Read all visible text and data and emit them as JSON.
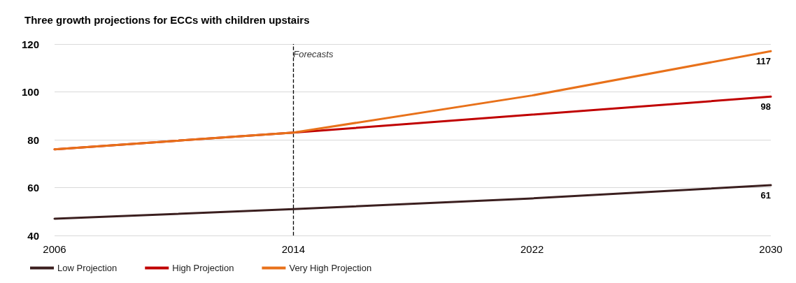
{
  "chart_data": {
    "type": "line",
    "title": "Three growth projections for ECCs with children upstairs",
    "x": [
      2006,
      2014,
      2022,
      2030
    ],
    "series": [
      {
        "name": "Low Projection",
        "color": "#3b1f1f",
        "values": [
          47,
          51,
          55.5,
          61
        ],
        "value_labels": [
          null,
          null,
          null,
          "61"
        ]
      },
      {
        "name": "High Projection",
        "color": "#c00000",
        "values": [
          76,
          83,
          90.5,
          98
        ],
        "value_labels": [
          null,
          null,
          null,
          "98"
        ]
      },
      {
        "name": "Very High Projection",
        "color": "#e8711a",
        "values": [
          76,
          83,
          98.5,
          117
        ],
        "value_labels": [
          null,
          null,
          null,
          "117"
        ]
      }
    ],
    "xlim": [
      2006,
      2030
    ],
    "xticks": [
      2006,
      2014,
      2022,
      2030
    ],
    "ylim": [
      40,
      120
    ],
    "yticks": [
      40,
      60,
      80,
      100,
      120
    ],
    "ref_lines": [
      {
        "axis": "x",
        "value": 2014,
        "label": "Forecasts",
        "color": "#000000",
        "line_style": "dashed"
      }
    ],
    "grid": "y",
    "legend": "bottom left",
    "marker": "none",
    "line_style": "solid"
  }
}
